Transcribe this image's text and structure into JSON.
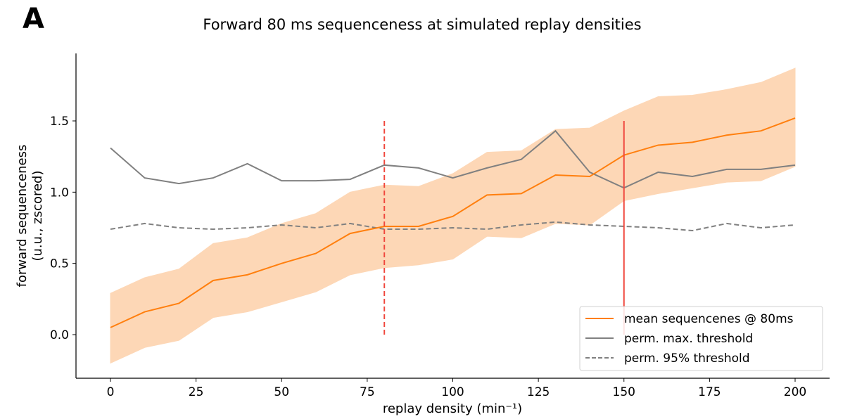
{
  "panel_label": "A",
  "chart_data": {
    "type": "line",
    "title": "Forward 80 ms sequenceness at simulated replay densities",
    "xlabel": "replay density (min⁻¹)",
    "ylabel_line1": "forward sequenceness",
    "ylabel_line2": "(u.u., zscored)",
    "xlim": [
      -10,
      210
    ],
    "ylim": [
      -0.3,
      1.97
    ],
    "xticks": [
      0,
      25,
      50,
      75,
      100,
      125,
      150,
      175,
      200
    ],
    "yticks": [
      0.0,
      0.5,
      1.0,
      1.5
    ],
    "ytick_labels": [
      "0.0",
      "0.5",
      "1.0",
      "1.5"
    ],
    "grid": false,
    "legend_position": "lower-right",
    "x": [
      0,
      10,
      20,
      30,
      40,
      50,
      60,
      70,
      80,
      90,
      100,
      110,
      120,
      130,
      140,
      150,
      160,
      170,
      180,
      190,
      200
    ],
    "series": [
      {
        "name": "mean sequencenes @ 80ms",
        "style": "solid",
        "color": "#ff7f0e",
        "values": [
          0.05,
          0.16,
          0.22,
          0.38,
          0.42,
          0.5,
          0.57,
          0.71,
          0.76,
          0.76,
          0.83,
          0.98,
          0.99,
          1.12,
          1.11,
          1.26,
          1.33,
          1.35,
          1.4,
          1.43,
          1.52
        ],
        "band_upper": [
          0.29,
          0.4,
          0.46,
          0.64,
          0.68,
          0.78,
          0.85,
          1.0,
          1.05,
          1.04,
          1.13,
          1.28,
          1.29,
          1.44,
          1.45,
          1.57,
          1.67,
          1.68,
          1.72,
          1.77,
          1.87
        ],
        "band_lower": [
          -0.2,
          -0.09,
          -0.04,
          0.12,
          0.16,
          0.23,
          0.3,
          0.42,
          0.47,
          0.49,
          0.53,
          0.69,
          0.68,
          0.78,
          0.77,
          0.94,
          0.99,
          1.03,
          1.07,
          1.08,
          1.18
        ],
        "band_color": "#fdd7b6"
      },
      {
        "name": "perm. max. threshold",
        "style": "solid",
        "color": "#808080",
        "values": [
          1.31,
          1.1,
          1.06,
          1.1,
          1.2,
          1.08,
          1.08,
          1.09,
          1.19,
          1.17,
          1.1,
          1.17,
          1.23,
          1.43,
          1.14,
          1.03,
          1.14,
          1.11,
          1.16,
          1.16,
          1.19
        ]
      },
      {
        "name": "perm. 95% threshold",
        "style": "dashed",
        "color": "#808080",
        "values": [
          0.74,
          0.78,
          0.75,
          0.74,
          0.75,
          0.77,
          0.75,
          0.78,
          0.74,
          0.74,
          0.75,
          0.74,
          0.77,
          0.79,
          0.77,
          0.76,
          0.75,
          0.73,
          0.78,
          0.75,
          0.77
        ]
      }
    ],
    "vlines": [
      {
        "x": 80,
        "ymin": 0.0,
        "ymax": 1.5,
        "style": "dashed",
        "color": "#f0483e"
      },
      {
        "x": 150,
        "ymin": 0.0,
        "ymax": 1.5,
        "style": "solid",
        "color": "#f0483e"
      }
    ]
  }
}
